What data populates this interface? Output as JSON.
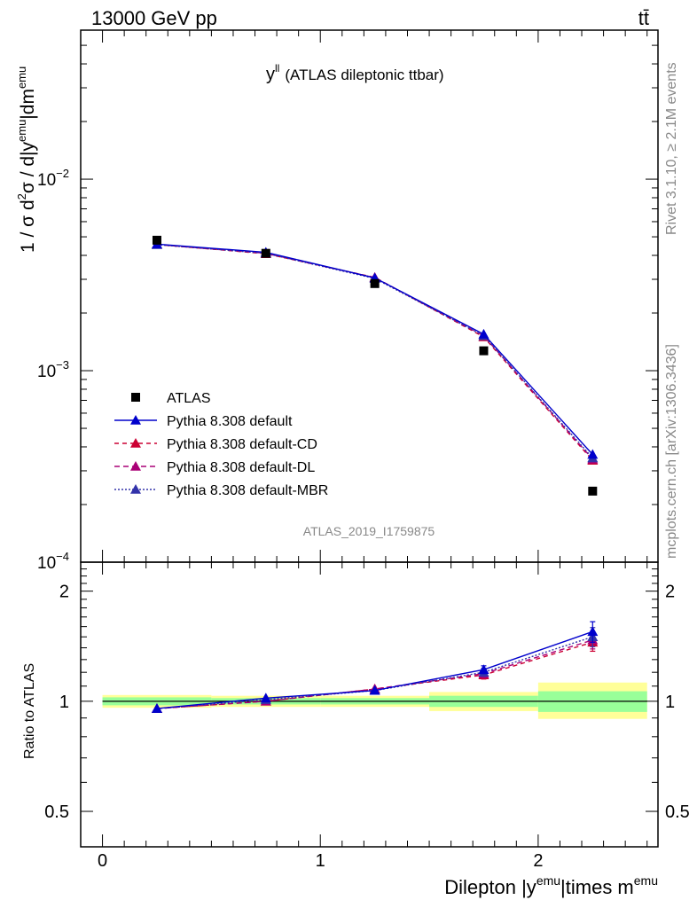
{
  "header": {
    "energy_label": "13000 GeV pp",
    "process_label": "tt̄"
  },
  "side_labels": {
    "rivet": "Rivet 3.1.10, ≥ 2.1M events",
    "mcplots": "mcplots.cern.ch [arXiv:1306.3436]"
  },
  "chart_data": {
    "type": "line",
    "title": "(ATLAS dileptonic ttbar)",
    "title_symbol": "y",
    "title_symbol_sup": "ll",
    "analysis_id": "ATLAS_2019_I1759875",
    "xlabel": {
      "prefix": "Dilepton |y",
      "sup1": "emu",
      "middle": "|times m",
      "sup2": "emu"
    },
    "ylabel": {
      "p1": "1 / σ  d",
      "sup1": "2",
      "p2": "σ / d|y",
      "sup2": "emu",
      "p3": "|dm",
      "sup3": "emu"
    },
    "ratio_ylabel": "Ratio to ATLAS",
    "xlim": [
      -0.1,
      2.55
    ],
    "ylim": [
      0.0001,
      0.06
    ],
    "yscale": "log",
    "ratio_ylim": [
      0.4,
      2.4
    ],
    "ratio_yscale": "log",
    "x_ticks": [
      "0",
      "1",
      "2"
    ],
    "y_ticks": [
      {
        "base": "10",
        "exp": "−2"
      },
      {
        "base": "10",
        "exp": "−3"
      },
      {
        "base": "10",
        "exp": "−4"
      }
    ],
    "ratio_ticks": [
      "2",
      "1",
      "0.5"
    ],
    "bins": [
      [
        0.0,
        0.5
      ],
      [
        0.5,
        1.0
      ],
      [
        1.0,
        1.5
      ],
      [
        1.5,
        2.0
      ],
      [
        2.0,
        2.5
      ]
    ],
    "x": [
      0.25,
      0.75,
      1.25,
      1.75,
      2.25
    ],
    "data": {
      "name": "ATLAS",
      "values": [
        0.0048,
        0.0041,
        0.00285,
        0.00127,
        0.000235
      ],
      "ratio_band_inner": [
        [
          0.975,
          1.025
        ],
        [
          0.98,
          1.02
        ],
        [
          0.98,
          1.02
        ],
        [
          0.965,
          1.035
        ],
        [
          0.935,
          1.065
        ]
      ],
      "ratio_band_outer": [
        [
          0.96,
          1.04
        ],
        [
          0.965,
          1.035
        ],
        [
          0.965,
          1.035
        ],
        [
          0.94,
          1.06
        ],
        [
          0.895,
          1.125
        ]
      ]
    },
    "series": [
      {
        "name": "Pythia 8.308 default",
        "color": "#0000cc",
        "dash": "",
        "values": [
          0.00458,
          0.00415,
          0.00305,
          0.00155,
          0.000365
        ],
        "ratio": [
          0.955,
          1.02,
          1.07,
          1.22,
          1.55
        ],
        "ratio_err": [
          0,
          0,
          0,
          0.03,
          0.1
        ]
      },
      {
        "name": "Pythia 8.308 default-CD",
        "color": "#cc0033",
        "dash": "5,4",
        "values": [
          0.00456,
          0.00408,
          0.00307,
          0.0015,
          0.00034
        ],
        "ratio": [
          0.955,
          1.0,
          1.08,
          1.18,
          1.45
        ],
        "ratio_err": [
          0,
          0,
          0,
          0.03,
          0.08
        ]
      },
      {
        "name": "Pythia 8.308 default-DL",
        "color": "#aa0077",
        "dash": "6,4",
        "values": [
          0.00456,
          0.0041,
          0.00306,
          0.00152,
          0.000345
        ],
        "ratio": [
          0.955,
          1.0,
          1.08,
          1.19,
          1.47
        ],
        "ratio_err": [
          0,
          0,
          0,
          0.03,
          0.08
        ]
      },
      {
        "name": "Pythia 8.308 default-MBR",
        "color": "#3333aa",
        "dash": "2,2",
        "values": [
          0.00455,
          0.0041,
          0.00303,
          0.00152,
          0.00035
        ],
        "ratio": [
          0.955,
          1.01,
          1.07,
          1.2,
          1.5
        ],
        "ratio_err": [
          0,
          0,
          0,
          0.03,
          0.09
        ]
      }
    ]
  }
}
